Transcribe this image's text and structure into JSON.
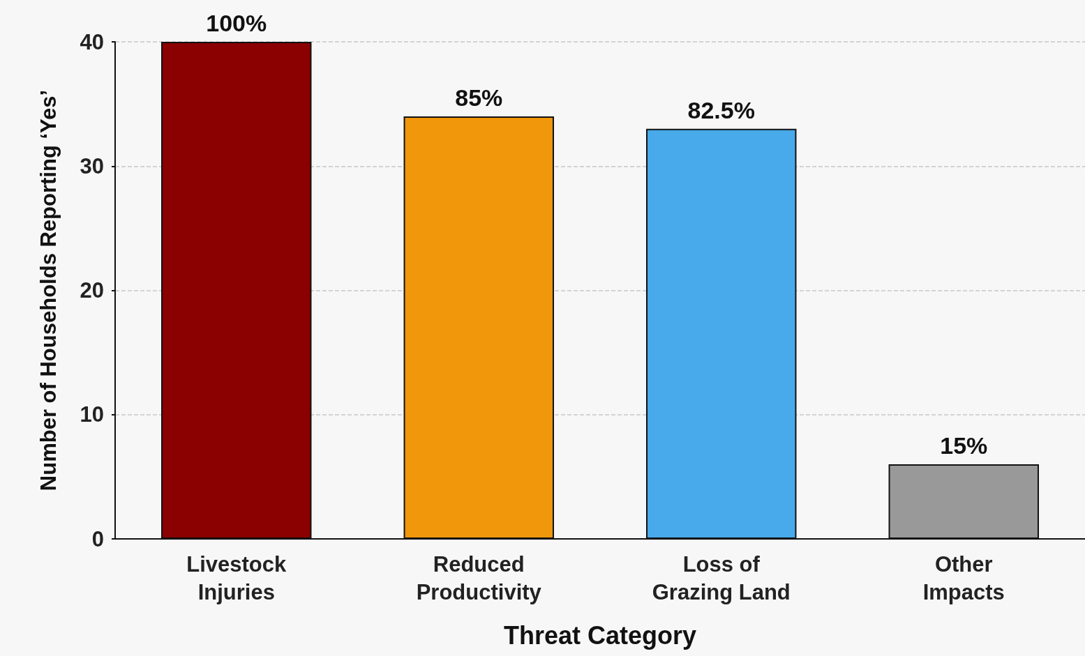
{
  "chart_data": {
    "type": "bar",
    "xlabel": "Threat Category",
    "ylabel": "Number of Households Reporting ‘Yes’",
    "categories": [
      "Livestock\nInjuries",
      "Reduced\nProductivity",
      "Loss of\nGrazing Land",
      "Other\nImpacts"
    ],
    "values": [
      40,
      34,
      33,
      6
    ],
    "colors": [
      "#8b0000",
      "#f0970c",
      "#48aaea",
      "#999999"
    ],
    "annotations": [
      {
        "text": "100%",
        "x": "Livestock\nInjuries",
        "y": 40
      },
      {
        "text": "85%",
        "x": "Reduced\nProductivity",
        "y": 34
      },
      {
        "text": "82.5%",
        "x": "Loss of\nGrazing Land",
        "y": 33
      },
      {
        "text": "15%",
        "x": "Other\nImpacts",
        "y": 6
      }
    ],
    "ylim": [
      0,
      40
    ],
    "yticks": [
      0,
      10,
      20,
      30,
      40
    ],
    "grid": "y"
  }
}
